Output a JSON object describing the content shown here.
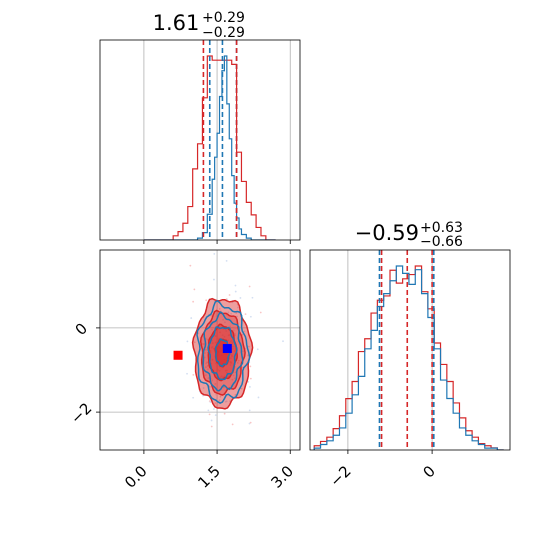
{
  "chart_data": {
    "type": "corner",
    "colors": {
      "blue": "#1f77b4",
      "red": "#d62728",
      "grid": "#b0b0b0",
      "marker_red": "#ff0000",
      "marker_blue": "#0000ff"
    },
    "params": [
      {
        "title_main": "1.61",
        "title_plus": "+0.29",
        "title_minus": "−0.29",
        "xlim": [
          -0.9,
          3.2
        ],
        "ticks": [
          0.0,
          1.5,
          3.0
        ],
        "tick_labels": [
          "0.0",
          "1.5",
          "3.0"
        ],
        "quantiles_blue": [
          1.35,
          1.61,
          1.9
        ],
        "quantiles_red": [
          1.22,
          1.9
        ],
        "hist_blue": {
          "edges": [
            0.0,
            0.1,
            0.2,
            0.3,
            0.4,
            0.5,
            0.6,
            0.7,
            0.8,
            0.9,
            1.0,
            1.1,
            1.2,
            1.3,
            1.4,
            1.45,
            1.5,
            1.55,
            1.6,
            1.65,
            1.7,
            1.75,
            1.8,
            1.85,
            1.9,
            1.95,
            2.0,
            2.1,
            2.2,
            2.3,
            2.4,
            2.5,
            2.6,
            2.7
          ],
          "counts": [
            0,
            0,
            0,
            0,
            0,
            0,
            0,
            0,
            0,
            0,
            0,
            1,
            4,
            14,
            33,
            45,
            58,
            78,
            92,
            100,
            74,
            55,
            35,
            20,
            12,
            6,
            3,
            1,
            0,
            0,
            0,
            0,
            0
          ]
        },
        "hist_red": {
          "edges": [
            0.0,
            0.2,
            0.4,
            0.6,
            0.7,
            0.8,
            0.9,
            1.0,
            1.1,
            1.2,
            1.3,
            1.4,
            1.5,
            1.6,
            1.7,
            1.8,
            1.9,
            2.0,
            2.1,
            2.2,
            2.3,
            2.4,
            2.5,
            2.6,
            2.7
          ],
          "counts": [
            0,
            0,
            0,
            1,
            2,
            4,
            8,
            17,
            23,
            34,
            44,
            43,
            43,
            43,
            43,
            42,
            21,
            14,
            9,
            6,
            3,
            1,
            0,
            0
          ]
        }
      },
      {
        "title_main": "−0.59",
        "title_plus": "+0.63",
        "title_minus": "−0.66",
        "xlim": [
          -2.9,
          1.85
        ],
        "ticks": [
          -2,
          0
        ],
        "tick_labels": [
          "−2",
          "0"
        ],
        "quantiles_blue": [
          -1.25,
          0.04
        ],
        "quantiles_red": [
          -1.2,
          -0.59,
          0.0
        ],
        "hist_blue": {
          "edges": [
            -2.8,
            -2.65,
            -2.5,
            -2.35,
            -2.2,
            -2.05,
            -1.9,
            -1.75,
            -1.6,
            -1.45,
            -1.3,
            -1.15,
            -1.0,
            -0.85,
            -0.7,
            -0.55,
            -0.4,
            -0.25,
            -0.1,
            0.05,
            0.2,
            0.35,
            0.5,
            0.65,
            0.8,
            0.95,
            1.1,
            1.25,
            1.4,
            1.55,
            1.7
          ],
          "counts": [
            1,
            3,
            5,
            8,
            12,
            20,
            30,
            40,
            55,
            65,
            78,
            85,
            92,
            100,
            96,
            90,
            98,
            85,
            72,
            55,
            38,
            28,
            20,
            12,
            8,
            5,
            3,
            1,
            1,
            0
          ]
        },
        "hist_red": {
          "edges": [
            -2.8,
            -2.65,
            -2.5,
            -2.35,
            -2.2,
            -2.05,
            -1.9,
            -1.75,
            -1.6,
            -1.45,
            -1.3,
            -1.15,
            -1.0,
            -0.85,
            -0.7,
            -0.55,
            -0.4,
            -0.25,
            -0.1,
            0.05,
            0.2,
            0.35,
            0.5,
            0.65,
            0.8,
            0.95,
            1.1,
            1.25,
            1.4,
            1.55,
            1.7
          ],
          "counts": [
            2,
            4,
            6,
            10,
            16,
            24,
            32,
            46,
            52,
            64,
            70,
            72,
            84,
            78,
            80,
            82,
            86,
            74,
            66,
            50,
            40,
            32,
            22,
            15,
            9,
            6,
            3,
            2,
            1,
            0
          ]
        }
      }
    ],
    "joint": {
      "xlim": [
        -0.9,
        3.2
      ],
      "ylim": [
        -2.9,
        1.85
      ],
      "blue_marker": [
        1.71,
        -0.49
      ],
      "red_marker": [
        0.7,
        -0.65
      ],
      "center": [
        1.61,
        -0.59
      ],
      "spread": [
        0.29,
        0.645
      ],
      "contour_levels_sigma": [
        0.5,
        1.0,
        1.5,
        2.0
      ]
    }
  }
}
